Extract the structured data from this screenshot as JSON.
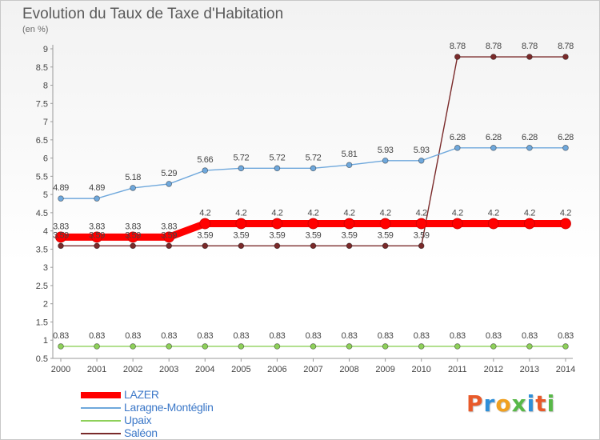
{
  "title": "Evolution du Taux de Taxe d'Habitation",
  "subtitle": "(en %)",
  "brand": "Proxiti",
  "brand_colors": [
    "#e85a2a",
    "#2f8fd8",
    "#f0a020",
    "#58b848",
    "#2f8fd8",
    "#e85a2a",
    "#58b848"
  ],
  "chart_data": {
    "type": "line",
    "x": [
      "2000",
      "2001",
      "2002",
      "2003",
      "2004",
      "2005",
      "2006",
      "2007",
      "2008",
      "2009",
      "2010",
      "2011",
      "2012",
      "2013",
      "2014"
    ],
    "ylim": [
      0.5,
      9
    ],
    "yticks": [
      "0.5",
      "1",
      "1.5",
      "2",
      "2.5",
      "3",
      "3.5",
      "4",
      "4.5",
      "5",
      "5.5",
      "6",
      "6.5",
      "7",
      "7.5",
      "8",
      "8.5",
      "9"
    ],
    "grid": false,
    "legend_position": "bottom-left",
    "series": [
      {
        "name": "LAZER",
        "color": "#ff0000",
        "values": [
          3.83,
          3.83,
          3.83,
          3.83,
          4.2,
          4.2,
          4.2,
          4.2,
          4.2,
          4.2,
          4.2,
          4.2,
          4.2,
          4.2,
          4.2
        ],
        "labels": [
          "3.83",
          "3.83",
          "3.83",
          "3.83",
          "4.2",
          "4.2",
          "4.2",
          "4.2",
          "4.2",
          "4.2",
          "4.2",
          "4.2",
          "4.2",
          "4.2",
          "4.2"
        ]
      },
      {
        "name": "Laragne-Montéglin",
        "color": "#6fa8dc",
        "values": [
          4.89,
          4.89,
          5.18,
          5.29,
          5.66,
          5.72,
          5.72,
          5.72,
          5.81,
          5.93,
          5.93,
          6.28,
          6.28,
          6.28,
          6.28
        ],
        "labels": [
          "4.89",
          "4.89",
          "5.18",
          "5.29",
          "5.66",
          "5.72",
          "5.72",
          "5.72",
          "5.81",
          "5.93",
          "5.93",
          "6.28",
          "6.28",
          "6.28",
          "6.28"
        ]
      },
      {
        "name": "Upaix",
        "color": "#8ed05a",
        "values": [
          0.83,
          0.83,
          0.83,
          0.83,
          0.83,
          0.83,
          0.83,
          0.83,
          0.83,
          0.83,
          0.83,
          0.83,
          0.83,
          0.83,
          0.83
        ],
        "labels": [
          "0.83",
          "0.83",
          "0.83",
          "0.83",
          "0.83",
          "0.83",
          "0.83",
          "0.83",
          "0.83",
          "0.83",
          "0.83",
          "0.83",
          "0.83",
          "0.83",
          "0.83"
        ]
      },
      {
        "name": "Saléon",
        "color": "#7a2a2a",
        "values": [
          3.59,
          3.59,
          3.59,
          3.59,
          3.59,
          3.59,
          3.59,
          3.59,
          3.59,
          3.59,
          3.59,
          8.78,
          8.78,
          8.78,
          8.78
        ],
        "labels": [
          "3.59",
          "3.59",
          "3.59",
          "3.59",
          "3.59",
          "3.59",
          "3.59",
          "3.59",
          "3.59",
          "3.59",
          "3.59",
          "8.78",
          "8.78",
          "8.78",
          "8.78"
        ]
      }
    ]
  }
}
